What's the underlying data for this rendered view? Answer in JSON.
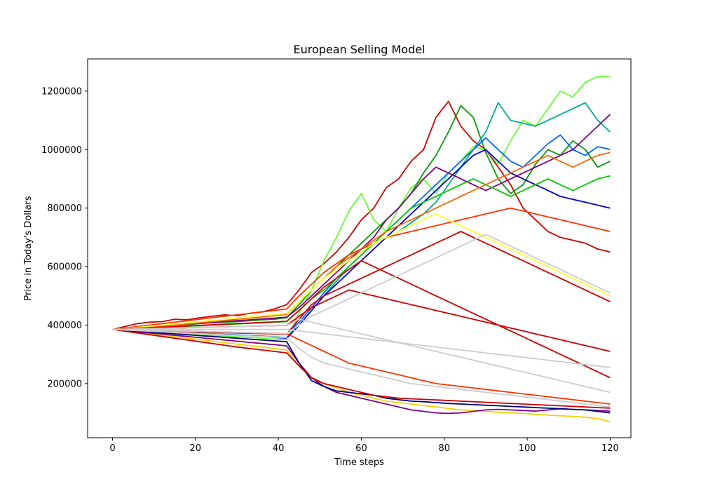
{
  "chart_data": {
    "type": "line",
    "title": "European Selling Model",
    "xlabel": "Time steps",
    "ylabel": "Price in Today's Dollars",
    "xlim": [
      -6,
      125
    ],
    "ylim": [
      15000,
      1310000
    ],
    "x_ticks": [
      0,
      20,
      40,
      60,
      80,
      100,
      120
    ],
    "x_tick_labels": [
      "0",
      "20",
      "40",
      "60",
      "80",
      "100",
      "120"
    ],
    "y_ticks": [
      200000,
      400000,
      600000,
      800000,
      1000000,
      1200000
    ],
    "y_tick_labels": [
      "200000",
      "400000",
      "600000",
      "800000",
      "1000000",
      "1200000"
    ],
    "grid": false,
    "legend": "none",
    "colors": [
      "#cc0000",
      "#ff3300",
      "#ff6600",
      "#ffcc00",
      "#ffff33",
      "#66ff33",
      "#00cc00",
      "#009900",
      "#00aa99",
      "#0066ff",
      "#0000cc",
      "#000080",
      "#800080",
      "#cccccc"
    ],
    "series": [
      {
        "color": "#cc0000",
        "values": [
          385000,
          395000,
          405000,
          410000,
          412000,
          420000,
          418000,
          425000,
          430000,
          435000,
          432000,
          440000,
          445000,
          455000,
          470000,
          520000,
          580000,
          610000,
          650000,
          700000,
          760000,
          800000,
          870000,
          900000,
          960000,
          1000000,
          1110000,
          1165000,
          1080000,
          1030000,
          1000000,
          940000,
          880000,
          800000,
          760000,
          720000,
          700000,
          690000,
          680000,
          660000,
          650000
        ]
      },
      {
        "color": "#66ff33",
        "values": [
          385000,
          382000,
          378000,
          375000,
          372000,
          370000,
          368000,
          366000,
          365000,
          362000,
          360000,
          358000,
          355000,
          352000,
          350000,
          440000,
          520000,
          620000,
          700000,
          790000,
          850000,
          760000,
          720000,
          800000,
          870000,
          900000,
          850000,
          920000,
          960000,
          1010000,
          1000000,
          950000,
          1030000,
          1100000,
          1080000,
          1140000,
          1200000,
          1180000,
          1230000,
          1250000,
          1250000
        ]
      },
      {
        "color": "#009900",
        "values": [
          385000,
          388000,
          392000,
          395000,
          398000,
          400000,
          402000,
          405000,
          408000,
          410000,
          412000,
          415000,
          418000,
          420000,
          425000,
          470000,
          520000,
          560000,
          600000,
          640000,
          680000,
          720000,
          760000,
          800000,
          850000,
          920000,
          980000,
          1060000,
          1150000,
          1110000,
          990000,
          900000,
          850000,
          880000,
          950000,
          1000000,
          980000,
          1030000,
          1000000,
          940000,
          960000
        ]
      },
      {
        "color": "#00aa99",
        "values": [
          385000,
          383000,
          381000,
          380000,
          378000,
          376000,
          374000,
          372000,
          370000,
          368000,
          366000,
          364000,
          362000,
          360000,
          358000,
          400000,
          450000,
          500000,
          550000,
          600000,
          640000,
          680000,
          700000,
          720000,
          750000,
          780000,
          820000,
          880000,
          940000,
          1000000,
          1060000,
          1160000,
          1100000,
          1090000,
          1080000,
          1100000,
          1120000,
          1140000,
          1160000,
          1100000,
          1060000
        ]
      },
      {
        "color": "#0066ff",
        "values": [
          385000,
          384000,
          383000,
          382000,
          381000,
          380000,
          379000,
          378000,
          377000,
          376000,
          375000,
          374000,
          373000,
          372000,
          370000,
          410000,
          460000,
          510000,
          560000,
          600000,
          640000,
          680000,
          720000,
          760000,
          800000,
          840000,
          880000,
          920000,
          960000,
          1000000,
          1040000,
          1000000,
          960000,
          940000,
          980000,
          1020000,
          1050000,
          1000000,
          980000,
          1010000,
          1000000
        ]
      },
      {
        "color": "#0000cc",
        "values": [
          385000,
          384000,
          382000,
          380000,
          378000,
          376000,
          374000,
          372000,
          370000,
          368000,
          366000,
          364000,
          362000,
          358000,
          355000,
          400000,
          450000,
          500000,
          540000,
          580000,
          620000,
          660000,
          700000,
          740000,
          780000,
          820000,
          860000,
          900000,
          940000,
          980000,
          1000000,
          960000,
          920000,
          900000,
          880000,
          860000,
          840000,
          830000,
          820000,
          810000,
          800000
        ]
      },
      {
        "color": "#800080",
        "values": [
          385000,
          388000,
          391000,
          394000,
          397000,
          400000,
          403000,
          406000,
          409000,
          412000,
          415000,
          418000,
          421000,
          424000,
          427000,
          460000,
          500000,
          540000,
          580000,
          620000,
          660000,
          700000,
          760000,
          800000,
          850000,
          900000,
          940000,
          920000,
          900000,
          880000,
          860000,
          880000,
          900000,
          920000,
          940000,
          960000,
          980000,
          1000000,
          1040000,
          1080000,
          1120000
        ]
      },
      {
        "color": "#00cc00",
        "values": [
          385000,
          386000,
          388000,
          390000,
          392000,
          394000,
          396000,
          398000,
          400000,
          402000,
          404000,
          406000,
          408000,
          410000,
          412000,
          450000,
          490000,
          520000,
          560000,
          600000,
          640000,
          680000,
          720000,
          760000,
          800000,
          820000,
          840000,
          860000,
          880000,
          900000,
          880000,
          860000,
          840000,
          860000,
          880000,
          900000,
          880000,
          860000,
          880000,
          900000,
          910000
        ]
      },
      {
        "color": "#ff6600",
        "values": [
          385000,
          387000,
          390000,
          393000,
          396000,
          400000,
          404000,
          408000,
          412000,
          416000,
          420000,
          424000,
          428000,
          432000,
          436000,
          480000,
          520000,
          560000,
          600000,
          630000,
          660000,
          690000,
          720000,
          740000,
          760000,
          780000,
          800000,
          820000,
          840000,
          860000,
          880000,
          900000,
          920000,
          940000,
          960000,
          980000,
          960000,
          940000,
          960000,
          980000,
          990000
        ]
      },
      {
        "color": "#ffcc00",
        "values": [
          385000,
          380000,
          375000,
          370000,
          365000,
          360000,
          355000,
          350000,
          345000,
          340000,
          335000,
          330000,
          325000,
          320000,
          315000,
          260000,
          220000,
          200000,
          185000,
          170000,
          160000,
          150000,
          140000,
          135000,
          130000,
          125000,
          120000,
          115000,
          110000,
          108000,
          105000,
          102000,
          100000,
          98000,
          95000,
          92000,
          90000,
          88000,
          85000,
          80000,
          70000
        ]
      },
      {
        "color": "#800080",
        "values": [
          385000,
          381000,
          377000,
          373000,
          369000,
          365000,
          361000,
          357000,
          353000,
          349000,
          345000,
          341000,
          337000,
          333000,
          329000,
          270000,
          220000,
          190000,
          170000,
          160000,
          150000,
          140000,
          130000,
          120000,
          110000,
          105000,
          100000,
          98000,
          100000,
          105000,
          110000,
          112000,
          110000,
          108000,
          106000,
          110000,
          114000,
          112000,
          110000,
          108000,
          106000
        ]
      },
      {
        "color": "#000080",
        "values": [
          385000,
          382000,
          379000,
          376000,
          373000,
          370000,
          367000,
          364000,
          361000,
          358000,
          355000,
          352000,
          349000,
          346000,
          343000,
          270000,
          210000,
          190000,
          175000,
          170000,
          165000,
          160000,
          150000,
          145000,
          140000,
          138000,
          135000,
          132000,
          130000,
          128000,
          126000,
          124000,
          122000,
          120000,
          118000,
          116000,
          114000,
          112000,
          110000,
          105000,
          100000
        ]
      },
      {
        "color": "#ff3300",
        "values": [
          385000,
          390000,
          395000,
          400000,
          405000,
          410000,
          415000,
          420000,
          425000,
          430000,
          435000,
          440000,
          445000,
          450000,
          455000,
          500000,
          540000,
          580000,
          610000,
          640000,
          660000,
          680000,
          700000,
          710000,
          720000,
          730000,
          740000,
          750000,
          760000,
          770000,
          780000,
          790000,
          800000,
          790000,
          780000,
          770000,
          760000,
          750000,
          740000,
          730000,
          720000
        ]
      },
      {
        "color": "#cc0000",
        "values": [
          385000,
          383000,
          381000,
          380000,
          379000,
          378000,
          377000,
          376000,
          375000,
          374000,
          373000,
          372000,
          371000,
          370000,
          369000,
          420000,
          470000,
          500000,
          520000,
          540000,
          560000,
          580000,
          600000,
          620000,
          640000,
          660000,
          680000,
          700000,
          720000,
          700000,
          680000,
          660000,
          640000,
          620000,
          600000,
          580000,
          560000,
          540000,
          520000,
          500000,
          480000
        ]
      },
      {
        "color": "#cc0000",
        "values": [
          385000,
          379000,
          373000,
          367000,
          361000,
          355000,
          349000,
          343000,
          337000,
          331000,
          325000,
          320000,
          315000,
          310000,
          305000,
          260000,
          220000,
          200000,
          190000,
          180000,
          170000,
          160000,
          155000,
          150000,
          148000,
          146000,
          144000,
          142000,
          140000,
          138000,
          136000,
          134000,
          132000,
          130000,
          128000,
          126000,
          124000,
          122000,
          120000,
          118000,
          116000
        ]
      },
      {
        "color": "#ffff33",
        "values": [
          385000,
          388000,
          392000,
          396000,
          400000,
          404000,
          408000,
          412000,
          416000,
          420000,
          424000,
          428000,
          432000,
          436000,
          440000,
          480000,
          520000,
          560000,
          590000,
          620000,
          650000,
          680000,
          700000,
          720000,
          740000,
          760000,
          780000,
          760000,
          740000,
          720000,
          700000,
          680000,
          660000,
          640000,
          620000,
          600000,
          580000,
          560000,
          540000,
          520000,
          500000
        ]
      },
      {
        "color": "#cc0000",
        "values": [
          385000,
          386000,
          387000,
          388000,
          389000,
          390000,
          391000,
          392000,
          393000,
          394000,
          395000,
          396000,
          397000,
          398000,
          399000,
          430000,
          460000,
          480000,
          500000,
          520000,
          510000,
          500000,
          490000,
          480000,
          470000,
          460000,
          450000,
          440000,
          430000,
          420000,
          410000,
          400000,
          390000,
          380000,
          370000,
          360000,
          350000,
          340000,
          330000,
          320000,
          310000
        ]
      },
      {
        "color": "#ff3300",
        "values": [
          385000,
          384000,
          383000,
          382000,
          381000,
          380000,
          379000,
          378000,
          377000,
          376000,
          375000,
          374000,
          373000,
          372000,
          371000,
          350000,
          330000,
          310000,
          290000,
          270000,
          260000,
          250000,
          240000,
          230000,
          220000,
          210000,
          200000,
          195000,
          190000,
          185000,
          180000,
          175000,
          170000,
          165000,
          160000,
          155000,
          150000,
          145000,
          140000,
          135000,
          130000
        ]
      },
      {
        "color": "#cc0000",
        "values": [
          385000,
          387000,
          389000,
          391000,
          393000,
          395000,
          397000,
          399000,
          401000,
          403000,
          405000,
          407000,
          409000,
          411000,
          413000,
          450000,
          490000,
          530000,
          560000,
          590000,
          620000,
          600000,
          580000,
          560000,
          540000,
          520000,
          500000,
          480000,
          460000,
          440000,
          420000,
          400000,
          380000,
          360000,
          340000,
          320000,
          300000,
          280000,
          260000,
          240000,
          220000
        ]
      },
      {
        "color": "#cccccc",
        "values": [
          385000,
          384000,
          383000,
          382000,
          381000,
          380000,
          379000,
          378000,
          377000,
          376000,
          375000,
          374000,
          373000,
          372000,
          371000,
          400000,
          430000,
          450000,
          470000,
          490000,
          510000,
          530000,
          550000,
          570000,
          590000,
          610000,
          630000,
          650000,
          670000,
          690000,
          710000,
          690000,
          670000,
          650000,
          630000,
          610000,
          590000,
          570000,
          550000,
          530000,
          510000
        ]
      },
      {
        "color": "#cccccc",
        "values": [
          385000,
          383000,
          381000,
          379000,
          377000,
          375000,
          373000,
          371000,
          369000,
          367000,
          365000,
          363000,
          361000,
          359000,
          357000,
          320000,
          290000,
          270000,
          260000,
          250000,
          240000,
          230000,
          220000,
          210000,
          200000,
          195000,
          190000,
          185000,
          180000,
          175000,
          170000,
          165000,
          160000,
          155000,
          150000,
          145000,
          140000,
          135000,
          130000,
          125000,
          120000
        ]
      },
      {
        "color": "#cccccc",
        "values": [
          385000,
          386000,
          387000,
          388000,
          389000,
          390000,
          391000,
          392000,
          393000,
          394000,
          395000,
          396000,
          397000,
          398000,
          399000,
          420000,
          410000,
          400000,
          390000,
          380000,
          370000,
          360000,
          350000,
          340000,
          330000,
          320000,
          310000,
          300000,
          290000,
          280000,
          270000,
          260000,
          250000,
          240000,
          230000,
          220000,
          210000,
          200000,
          190000,
          180000,
          170000
        ]
      },
      {
        "color": "#cccccc",
        "values": [
          385000,
          385000,
          385000,
          385000,
          385000,
          385000,
          385000,
          385000,
          385000,
          385000,
          385000,
          385000,
          385000,
          385000,
          385000,
          380000,
          375000,
          370000,
          365000,
          360000,
          355000,
          350000,
          345000,
          340000,
          335000,
          330000,
          325000,
          320000,
          315000,
          310000,
          305000,
          300000,
          295000,
          290000,
          285000,
          280000,
          275000,
          270000,
          265000,
          260000,
          255000
        ]
      }
    ]
  }
}
